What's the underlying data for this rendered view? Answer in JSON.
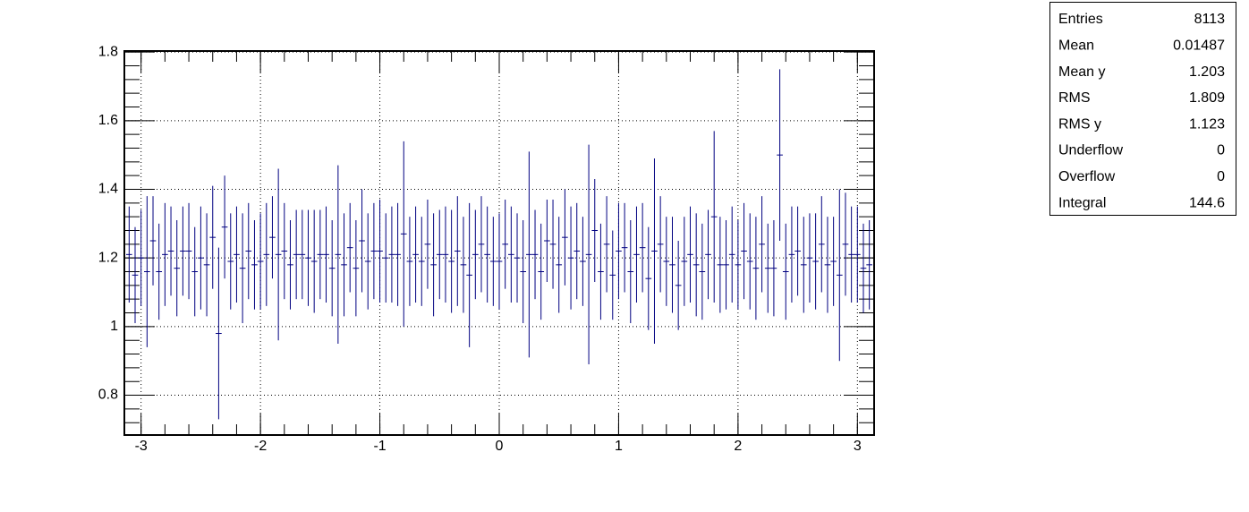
{
  "chart_data": {
    "type": "profile",
    "color": "#000080",
    "grid": true,
    "xlim": [
      -3.14,
      3.14
    ],
    "ylim": [
      0.684,
      1.803
    ],
    "xticks": [
      -3,
      -2,
      -1,
      0,
      1,
      2,
      3
    ],
    "yticks": [
      0.8,
      1,
      1.2,
      1.4,
      1.6,
      1.8
    ],
    "x": [
      -3.1,
      -3.05,
      -3,
      -2.95,
      -2.9,
      -2.85,
      -2.8,
      -2.75,
      -2.7,
      -2.65,
      -2.6,
      -2.55,
      -2.5,
      -2.45,
      -2.4,
      -2.35,
      -2.3,
      -2.25,
      -2.2,
      -2.15,
      -2.1,
      -2.05,
      -2,
      -1.95,
      -1.9,
      -1.85,
      -1.8,
      -1.75,
      -1.7,
      -1.65,
      -1.6,
      -1.55,
      -1.5,
      -1.45,
      -1.4,
      -1.35,
      -1.3,
      -1.25,
      -1.2,
      -1.15,
      -1.1,
      -1.05,
      -1,
      -0.95,
      -0.9,
      -0.85,
      -0.8,
      -0.75,
      -0.7,
      -0.65,
      -0.6,
      -0.55,
      -0.5,
      -0.45,
      -0.4,
      -0.35,
      -0.3,
      -0.25,
      -0.2,
      -0.15,
      -0.1,
      -0.05,
      0,
      0.05,
      0.1,
      0.15,
      0.2,
      0.25,
      0.3,
      0.35,
      0.4,
      0.45,
      0.5,
      0.55,
      0.6,
      0.65,
      0.7,
      0.75,
      0.8,
      0.85,
      0.9,
      0.95,
      1,
      1.05,
      1.1,
      1.15,
      1.2,
      1.25,
      1.3,
      1.35,
      1.4,
      1.45,
      1.5,
      1.55,
      1.6,
      1.65,
      1.7,
      1.75,
      1.8,
      1.85,
      1.9,
      1.95,
      2,
      2.05,
      2.1,
      2.15,
      2.2,
      2.25,
      2.3,
      2.35,
      2.4,
      2.45,
      2.5,
      2.55,
      2.6,
      2.65,
      2.7,
      2.75,
      2.8,
      2.85,
      2.9,
      2.95,
      3,
      3.05,
      3.1
    ],
    "values": [
      1.21,
      1.15,
      1.2,
      1.16,
      1.25,
      1.16,
      1.21,
      1.22,
      1.17,
      1.22,
      1.22,
      1.16,
      1.2,
      1.18,
      1.26,
      0.98,
      1.29,
      1.19,
      1.21,
      1.17,
      1.22,
      1.18,
      1.19,
      1.21,
      1.26,
      1.21,
      1.22,
      1.18,
      1.21,
      1.21,
      1.2,
      1.19,
      1.21,
      1.21,
      1.17,
      1.21,
      1.18,
      1.23,
      1.17,
      1.25,
      1.19,
      1.22,
      1.22,
      1.2,
      1.21,
      1.21,
      1.27,
      1.19,
      1.21,
      1.19,
      1.24,
      1.18,
      1.21,
      1.21,
      1.19,
      1.22,
      1.18,
      1.15,
      1.21,
      1.24,
      1.21,
      1.19,
      1.19,
      1.24,
      1.21,
      1.2,
      1.16,
      1.21,
      1.21,
      1.16,
      1.25,
      1.24,
      1.18,
      1.26,
      1.2,
      1.22,
      1.19,
      1.21,
      1.28,
      1.16,
      1.24,
      1.15,
      1.22,
      1.23,
      1.16,
      1.21,
      1.23,
      1.14,
      1.22,
      1.24,
      1.19,
      1.18,
      1.12,
      1.19,
      1.21,
      1.18,
      1.16,
      1.21,
      1.32,
      1.18,
      1.18,
      1.21,
      1.18,
      1.22,
      1.19,
      1.17,
      1.24,
      1.17,
      1.17,
      1.5,
      1.16,
      1.21,
      1.22,
      1.18,
      1.2,
      1.19,
      1.24,
      1.18,
      1.19,
      1.15,
      1.24,
      1.21,
      1.21,
      1.17,
      1.18
    ],
    "errors": [
      0.14,
      0.14,
      0.14,
      0.22,
      0.13,
      0.14,
      0.15,
      0.13,
      0.14,
      0.13,
      0.14,
      0.13,
      0.15,
      0.15,
      0.15,
      0.25,
      0.15,
      0.14,
      0.14,
      0.16,
      0.14,
      0.13,
      0.14,
      0.15,
      0.12,
      0.25,
      0.14,
      0.13,
      0.13,
      0.13,
      0.14,
      0.15,
      0.13,
      0.14,
      0.14,
      0.26,
      0.15,
      0.13,
      0.14,
      0.15,
      0.14,
      0.14,
      0.15,
      0.13,
      0.14,
      0.15,
      0.27,
      0.13,
      0.14,
      0.13,
      0.13,
      0.15,
      0.13,
      0.14,
      0.15,
      0.16,
      0.14,
      0.21,
      0.13,
      0.14,
      0.14,
      0.13,
      0.14,
      0.13,
      0.14,
      0.13,
      0.15,
      0.3,
      0.13,
      0.14,
      0.12,
      0.13,
      0.14,
      0.14,
      0.15,
      0.14,
      0.13,
      0.32,
      0.15,
      0.14,
      0.14,
      0.13,
      0.14,
      0.13,
      0.15,
      0.14,
      0.13,
      0.15,
      0.27,
      0.14,
      0.13,
      0.14,
      0.13,
      0.13,
      0.14,
      0.15,
      0.14,
      0.13,
      0.25,
      0.14,
      0.13,
      0.14,
      0.13,
      0.14,
      0.14,
      0.15,
      0.14,
      0.13,
      0.14,
      0.25,
      0.14,
      0.14,
      0.13,
      0.14,
      0.13,
      0.14,
      0.14,
      0.14,
      0.13,
      0.25,
      0.15,
      0.14,
      0.14,
      0.13,
      0.13
    ],
    "stats": [
      {
        "label": "Entries",
        "value": 8113
      },
      {
        "label": "Mean",
        "value": 0.01487
      },
      {
        "label": "Mean y",
        "value": 1.203
      },
      {
        "label": "RMS",
        "value": 1.809
      },
      {
        "label": "RMS y",
        "value": 1.123
      },
      {
        "label": "Underflow",
        "value": 0
      },
      {
        "label": "Overflow",
        "value": 0
      },
      {
        "label": "Integral",
        "value": 144.6
      }
    ]
  }
}
